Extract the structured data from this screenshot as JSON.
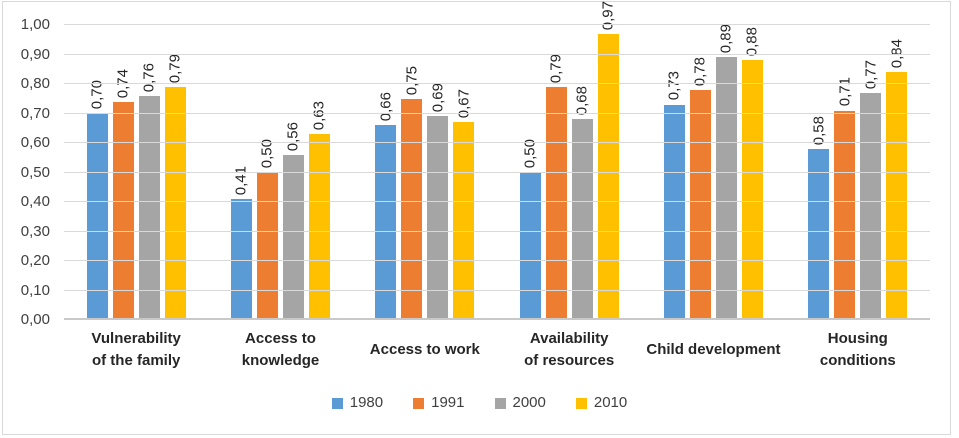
{
  "chart_data": {
    "type": "bar",
    "title": "",
    "categories": [
      "Vulnerability of the family",
      "Access to knowledge",
      "Access to work",
      "Availability of resources",
      "Child development",
      "Housing conditions"
    ],
    "categories_display": [
      [
        "Vulnerability",
        "of the family"
      ],
      [
        "Access to",
        "knowledge"
      ],
      [
        "Access to work"
      ],
      [
        "Availability",
        "of resources"
      ],
      [
        "Child development"
      ],
      [
        "Housing",
        "conditions"
      ]
    ],
    "series": [
      {
        "name": "1980",
        "color": "#5B9BD5",
        "values": [
          0.7,
          0.41,
          0.66,
          0.5,
          0.73,
          0.58
        ],
        "labels": [
          "0,70",
          "0,41",
          "0,66",
          "0,50",
          "0,73",
          "0,58"
        ]
      },
      {
        "name": "1991",
        "color": "#ED7D31",
        "values": [
          0.74,
          0.5,
          0.75,
          0.79,
          0.78,
          0.71
        ],
        "labels": [
          "0,74",
          "0,50",
          "0,75",
          "0,79",
          "0,78",
          "0,71"
        ]
      },
      {
        "name": "2000",
        "color": "#A5A5A5",
        "values": [
          0.76,
          0.56,
          0.69,
          0.68,
          0.89,
          0.77
        ],
        "labels": [
          "0,76",
          "0,56",
          "0,69",
          "0,68",
          "0,89",
          "0,77"
        ]
      },
      {
        "name": "2010",
        "color": "#FFC000",
        "values": [
          0.79,
          0.63,
          0.67,
          0.97,
          0.88,
          0.84
        ],
        "labels": [
          "0,79",
          "0,63",
          "0,67",
          "0,97",
          "0,88",
          "0,84"
        ]
      }
    ],
    "xlabel": "",
    "ylabel": "",
    "ylim": [
      0,
      1
    ],
    "ytick_step": 0.1,
    "ytick_labels": [
      "0,00",
      "0,10",
      "0,20",
      "0,30",
      "0,40",
      "0,50",
      "0,60",
      "0,70",
      "0,80",
      "0,90",
      "1,00"
    ],
    "decimal_separator": ",",
    "grid": true,
    "value_label_rotation": 90,
    "legend_position": "bottom"
  },
  "styles": {
    "bar_colors": [
      "#5B9BD5",
      "#ED7D31",
      "#A5A5A5",
      "#FFC000"
    ],
    "gridline_color": "#D9D9D9",
    "axis_line_color": "#C9C9C9",
    "tick_label_color": "#404040",
    "category_label_color": "#262626",
    "value_label_color": "#262626",
    "legend_label_color": "#404040",
    "background": "#FFFFFF",
    "border_color": "#D9D9D9"
  }
}
